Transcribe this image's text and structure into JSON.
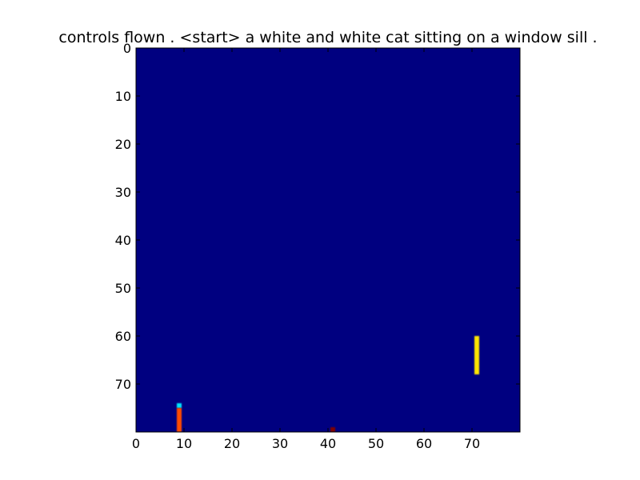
{
  "chart_data": {
    "type": "heatmap",
    "title": "controls flown . <start> a white and white cat sitting on a window sill .",
    "xlabel": "",
    "ylabel": "",
    "xlim": [
      0,
      80
    ],
    "ylim": [
      80,
      0
    ],
    "x_ticks": [
      "0",
      "10",
      "20",
      "30",
      "40",
      "50",
      "60",
      "70"
    ],
    "y_ticks": [
      "0",
      "10",
      "20",
      "30",
      "40",
      "50",
      "60",
      "70"
    ],
    "colormap": "jet",
    "background_value": 0.0,
    "grid": false,
    "hotspots": [
      {
        "x": 9,
        "y_start": 74,
        "y_end": 75,
        "value": 0.35
      },
      {
        "x": 9,
        "y_start": 75,
        "y_end": 80,
        "value": 0.8
      },
      {
        "x": 71,
        "y_start": 60,
        "y_end": 68,
        "value": 0.65
      },
      {
        "x": 41,
        "y_start": 79,
        "y_end": 80,
        "value": 1.0
      }
    ],
    "colors": {
      "background": "#000080",
      "axis": "#000000"
    }
  }
}
